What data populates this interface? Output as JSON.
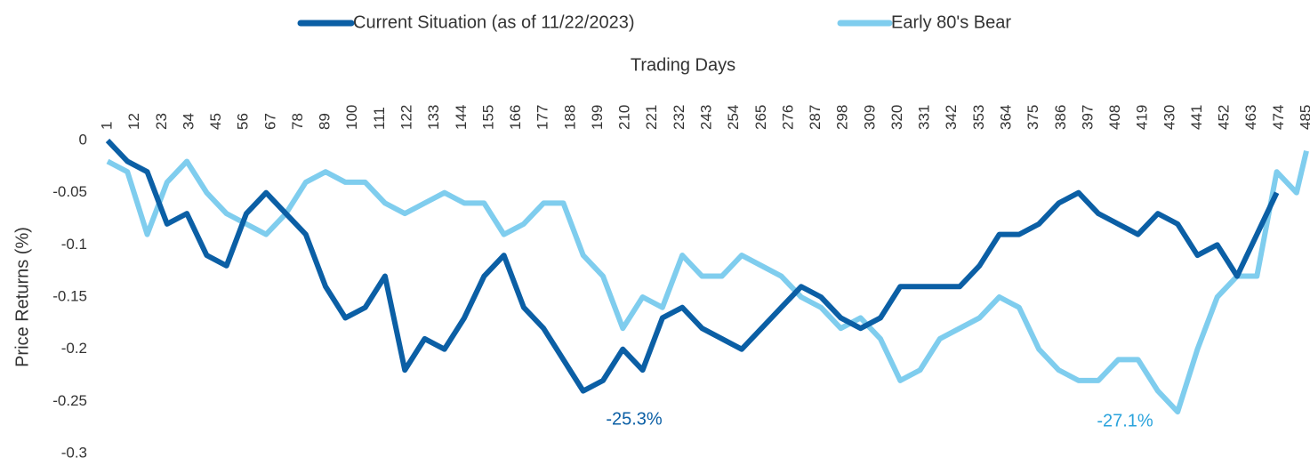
{
  "chart_data": {
    "type": "line",
    "x_label": "Trading Days",
    "y_label": "Price Returns (%)",
    "x": [
      1,
      9,
      17,
      25,
      33,
      41,
      49,
      57,
      65,
      73,
      81,
      89,
      97,
      105,
      113,
      121,
      129,
      137,
      145,
      153,
      161,
      169,
      177,
      185,
      193,
      201,
      209,
      217,
      225,
      233,
      241,
      249,
      257,
      265,
      273,
      281,
      289,
      297,
      305,
      313,
      321,
      329,
      337,
      345,
      353,
      361,
      369,
      377,
      385,
      393,
      401,
      409,
      417,
      425,
      433,
      441,
      449,
      457,
      465,
      473,
      481,
      485
    ],
    "series": [
      {
        "name": "Current Situation (as of 11/22/2023)",
        "color": "#0b5fa5",
        "values": [
          0,
          -0.02,
          -0.03,
          -0.08,
          -0.07,
          -0.11,
          -0.12,
          -0.07,
          -0.05,
          -0.07,
          -0.09,
          -0.14,
          -0.17,
          -0.16,
          -0.13,
          -0.22,
          -0.19,
          -0.2,
          -0.17,
          -0.13,
          -0.11,
          -0.16,
          -0.18,
          -0.21,
          -0.24,
          -0.23,
          -0.2,
          -0.22,
          -0.17,
          -0.16,
          -0.18,
          -0.19,
          -0.2,
          -0.18,
          -0.16,
          -0.14,
          -0.15,
          -0.17,
          -0.18,
          -0.17,
          -0.14,
          -0.14,
          -0.14,
          -0.14,
          -0.12,
          -0.09,
          -0.09,
          -0.08,
          -0.06,
          -0.05,
          -0.07,
          -0.08,
          -0.09,
          -0.07,
          -0.08,
          -0.11,
          -0.1,
          -0.13,
          -0.09,
          -0.05,
          null,
          null
        ]
      },
      {
        "name": "Early 80's Bear",
        "color": "#7fcdee",
        "values": [
          -0.02,
          -0.03,
          -0.09,
          -0.04,
          -0.02,
          -0.05,
          -0.07,
          -0.08,
          -0.09,
          -0.07,
          -0.04,
          -0.03,
          -0.04,
          -0.04,
          -0.06,
          -0.07,
          -0.06,
          -0.05,
          -0.06,
          -0.06,
          -0.09,
          -0.08,
          -0.06,
          -0.06,
          -0.11,
          -0.13,
          -0.18,
          -0.15,
          -0.16,
          -0.11,
          -0.13,
          -0.13,
          -0.11,
          -0.12,
          -0.13,
          -0.15,
          -0.16,
          -0.18,
          -0.17,
          -0.19,
          -0.23,
          -0.22,
          -0.19,
          -0.18,
          -0.17,
          -0.15,
          -0.16,
          -0.2,
          -0.22,
          -0.23,
          -0.23,
          -0.21,
          -0.21,
          -0.24,
          -0.26,
          -0.2,
          -0.15,
          -0.13,
          -0.13,
          -0.03,
          -0.05,
          -0.01
        ]
      }
    ],
    "annotations": [
      {
        "text": "-25.3%",
        "color": "#0b5fa5"
      },
      {
        "text": "-27.1%",
        "color": "#2aa3dc"
      }
    ],
    "xlim": [
      1,
      485
    ],
    "xticks": [
      1,
      12,
      23,
      34,
      45,
      56,
      67,
      78,
      89,
      100,
      111,
      122,
      133,
      144,
      155,
      166,
      177,
      188,
      199,
      210,
      221,
      232,
      243,
      254,
      265,
      276,
      287,
      298,
      309,
      320,
      331,
      342,
      353,
      364,
      375,
      386,
      397,
      408,
      419,
      430,
      441,
      452,
      463,
      474,
      485
    ],
    "ylim": [
      -0.3,
      0
    ],
    "yticks": [
      0,
      -0.05,
      -0.1,
      -0.15,
      -0.2,
      -0.25,
      -0.3
    ]
  }
}
